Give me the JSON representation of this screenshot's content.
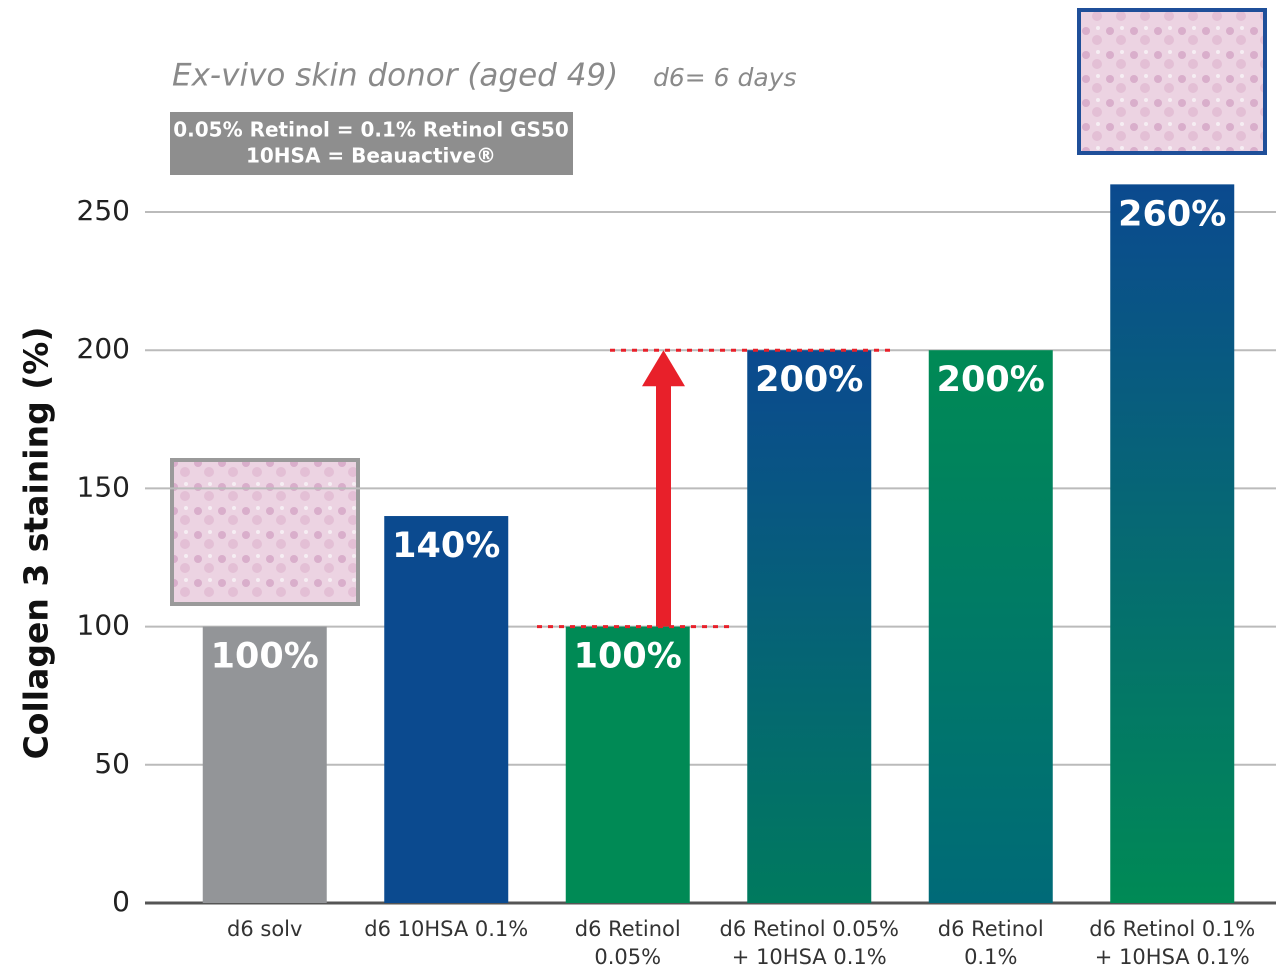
{
  "chart_data": {
    "type": "bar",
    "title": "Ex-vivo skin donor (aged 49)",
    "subtitle": "d6= 6 days",
    "notes": [
      "0.05% Retinol = 0.1% Retinol GS50",
      "10HSA = Beauactive®"
    ],
    "y_label": "Collagen 3 staining (%)",
    "categories": [
      [
        "d6 solv"
      ],
      [
        "d6 10HSA 0.1%"
      ],
      [
        "d6 Retinol",
        "0.05%"
      ],
      [
        "d6 Retinol 0.05%",
        "+ 10HSA 0.1%"
      ],
      [
        "d6 Retinol",
        "0.1%"
      ],
      [
        "d6 Retinol 0.1%",
        "+ 10HSA 0.1%"
      ]
    ],
    "values": [
      100,
      140,
      100,
      200,
      200,
      260
    ],
    "value_labels": [
      "100%",
      "140%",
      "100%",
      "200%",
      "200%",
      "260%"
    ],
    "colors": [
      [
        "#939598"
      ],
      [
        "#0b4a8f"
      ],
      [
        "#008a55"
      ],
      [
        "#0b4a8f",
        "#007a5e"
      ],
      [
        "#008a55",
        "#006a78"
      ],
      [
        "#0b4a8f",
        "#008a55"
      ]
    ],
    "ylim": [
      0,
      250
    ],
    "yticks": [
      0,
      50,
      100,
      150,
      200,
      250
    ],
    "grid": true
  }
}
